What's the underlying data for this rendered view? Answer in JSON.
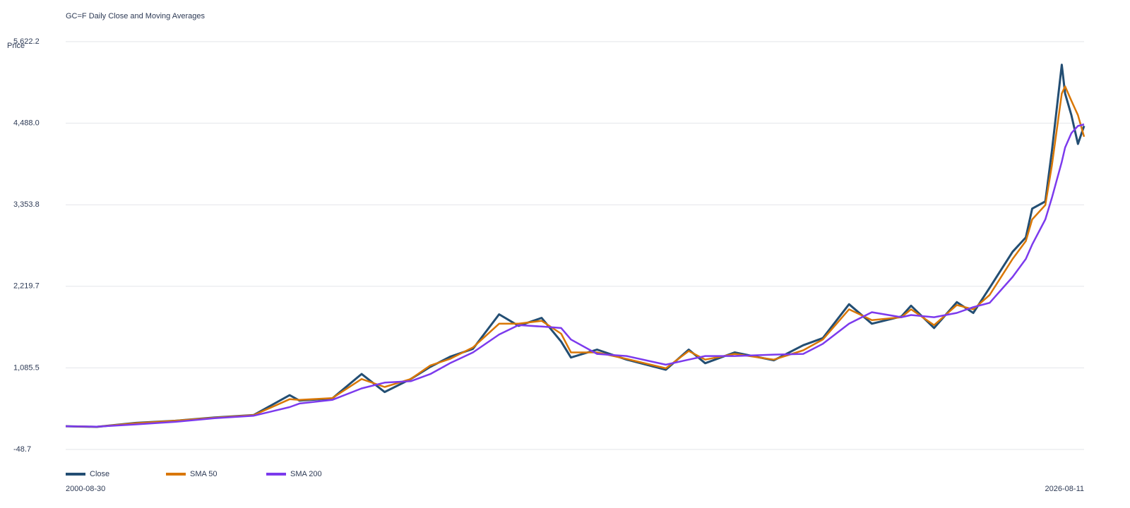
{
  "chart_data": {
    "type": "line",
    "title": "GC=F Daily Close and Moving Averages",
    "y_label": "Price",
    "x": [
      "2000-08-30",
      "2001-06-15",
      "2002-06-15",
      "2003-06-15",
      "2004-06-15",
      "2005-06-15",
      "2006-05-15",
      "2006-08-15",
      "2007-06-15",
      "2008-03-15",
      "2008-10-15",
      "2009-06-15",
      "2009-12-15",
      "2010-06-15",
      "2011-01-15",
      "2011-09-15",
      "2012-03-15",
      "2012-10-15",
      "2013-04-15",
      "2013-07-15",
      "2014-03-15",
      "2014-12-15",
      "2015-12-15",
      "2016-07-15",
      "2016-12-15",
      "2017-09-15",
      "2018-09-15",
      "2019-06-15",
      "2019-12-15",
      "2020-08-15",
      "2021-03-15",
      "2021-12-15",
      "2022-03-15",
      "2022-10-15",
      "2023-05-15",
      "2023-10-15",
      "2024-03-15",
      "2024-10-15",
      "2025-02-15",
      "2025-04-15",
      "2025-08-15",
      "2025-10-15",
      "2026-01-15",
      "2026-02-15",
      "2026-04-15",
      "2026-06-15",
      "2026-08-11"
    ],
    "series": [
      {
        "name": "Close",
        "color": "#234e73",
        "values": [
          274,
          265,
          320,
          350,
          395,
          430,
          706,
          630,
          660,
          1000,
          750,
          930,
          1100,
          1240,
          1350,
          1830,
          1670,
          1780,
          1450,
          1230,
          1340,
          1200,
          1060,
          1340,
          1150,
          1300,
          1190,
          1400,
          1500,
          1970,
          1700,
          1800,
          1950,
          1640,
          2000,
          1850,
          2200,
          2700,
          2900,
          3300,
          3400,
          4100,
          5300,
          4900,
          4600,
          4200,
          4450
        ]
      },
      {
        "name": "SMA 50",
        "color": "#d97706",
        "values": [
          274,
          266,
          315,
          350,
          392,
          428,
          650,
          640,
          665,
          930,
          820,
          930,
          1120,
          1210,
          1370,
          1700,
          1700,
          1740,
          1560,
          1300,
          1300,
          1210,
          1080,
          1320,
          1200,
          1280,
          1200,
          1330,
          1480,
          1900,
          1750,
          1790,
          1900,
          1680,
          1960,
          1900,
          2100,
          2600,
          2850,
          3150,
          3350,
          3900,
          4900,
          5000,
          4800,
          4600,
          4300
        ]
      },
      {
        "name": "SMA 200",
        "color": "#7c3aed",
        "values": [
          274,
          268,
          300,
          335,
          385,
          420,
          540,
          590,
          640,
          800,
          880,
          900,
          1000,
          1150,
          1300,
          1550,
          1680,
          1660,
          1640,
          1480,
          1280,
          1250,
          1130,
          1200,
          1250,
          1250,
          1270,
          1280,
          1420,
          1700,
          1860,
          1790,
          1820,
          1790,
          1850,
          1930,
          1990,
          2350,
          2600,
          2800,
          3150,
          3450,
          3950,
          4150,
          4350,
          4450,
          4470
        ]
      }
    ],
    "xlim": [
      "2000-08-30",
      "2026-08-11"
    ],
    "xticks": [
      "2000-08-30",
      "2026-08-11"
    ],
    "ylim": [
      -48.7,
      5622.2
    ],
    "yticks": [
      -48.7,
      {
        "value": 1085.5,
        "label": "1,085.5"
      },
      {
        "value": 2219.7,
        "label": "2,219.7"
      },
      {
        "value": 3353.8,
        "label": "3,353.8"
      },
      {
        "value": 4488.0,
        "label": "4,488.0"
      },
      {
        "value": 5622.2,
        "label": "5,622.2"
      }
    ],
    "grid": true
  }
}
